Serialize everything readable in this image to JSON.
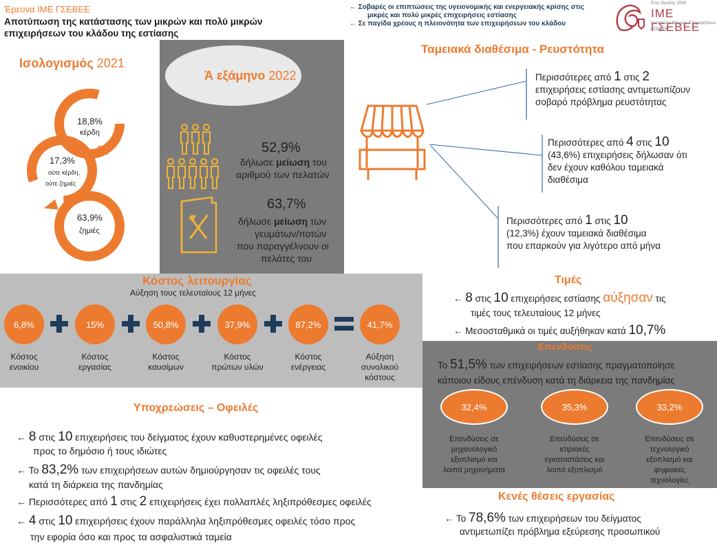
{
  "header": {
    "kicker": "Έρευνα ΙΜΕ ΓΣΕΒΕΕ",
    "title_line1": "Αποτύπωση της κατάστασης των μικρών και πολύ μικρών",
    "title_line2": "επιχειρήσεων του κλάδου της εστίασης",
    "bullet1_line1": "← Σοβαρές οι επιπτώσεις της υγειονομικής και ενεργειακής κρίσης στις",
    "bullet1_line2": "μικρές και πολύ μικρές επιχειρήσεις εστίασης",
    "bullet2": "← Σε παγίδα χρέους η πλειονότητα των επιχειρήσεων του κλάδου",
    "logo_small": "Ετος Ιδρυσης 2006",
    "logo_name": "ΙΜΕ ΓΣΕΒΕΕ",
    "logo_sub1": "Ινστιτούτο Μικρών Επιχειρήσεων",
    "logo_sub2": "ΓΣΕΒΕΕ"
  },
  "balance": {
    "title_a": "Ισολογισμός",
    "title_b": " 2021",
    "items": [
      {
        "value": "18,8%",
        "label": "κέρδη"
      },
      {
        "value": "17,3%",
        "label1": "ούτε κέρδη,",
        "label2": "ούτε ζημιές"
      },
      {
        "value": "63,9%",
        "label": "ζημιές"
      }
    ]
  },
  "semester": {
    "title_a": "Ά εξάμηνο",
    "title_b": " 2022",
    "stat1": {
      "value": "52,9%",
      "pre": "δήλωσε ",
      "strong": "μείωση",
      "post": " του",
      "line2": "αριθμού των πελατών"
    },
    "stat2": {
      "value": "63,7%",
      "pre": "δήλωσε ",
      "strong": "μείωση",
      "post": " των",
      "line2": "γευμάτων/ποτών",
      "line3": "που παραγγέλνουν οι",
      "line4": "πελάτες του"
    }
  },
  "cash": {
    "title": "Ταμειακά διαθέσιμα - Ρευστότητα",
    "b1": {
      "pre": "Περισσότερες από ",
      "n1": "1",
      "mid": " στις ",
      "n2": "2",
      "line2": "επιχειρήσεις εστίασης αντιμετωπίζουν",
      "line3": "σοβαρό πρόβλημα ρευστότητας"
    },
    "b2": {
      "pre": "Περισσότερες από ",
      "n1": "4",
      "mid": " στις ",
      "n2": "10",
      "line2": "(43,6%) επιχειρήσεις δήλωσαν ότι",
      "line3": "δεν έχουν καθόλου ταμειακά",
      "line4": "διαθέσιμα"
    },
    "b3": {
      "pre": "Περισσότερες από ",
      "n1": "1",
      "mid": " στις ",
      "n2": "10",
      "line2": "(12,3%) έχουν ταμειακά διαθέσιμα",
      "line3": "που επαρκούν για λιγότερο από μήνα"
    }
  },
  "costs": {
    "title": "Κόστος λειτουργίας",
    "subtitle": "Αύξηση τους τελευταίους 12 μήνες",
    "items": [
      {
        "value": "6,8%",
        "label1": "Κόστος",
        "label2": "ενοικίου"
      },
      {
        "value": "15%",
        "label1": "Κόστος",
        "label2": "εργασίας"
      },
      {
        "value": "50,8%",
        "label1": "Κόστος",
        "label2": "καυσίμων"
      },
      {
        "value": "37,9%",
        "label1": "Κόστος",
        "label2": "πρώτων υλών"
      },
      {
        "value": "87,2%",
        "label1": "Κόστος",
        "label2": "ενέργειας"
      },
      {
        "value": "41,7%",
        "label1": "Αύξηση",
        "label2": "συνολικού",
        "label3": "κόστους"
      }
    ]
  },
  "prices": {
    "title": "Τιμές",
    "l1_pre": "← ",
    "l1_n1": "8",
    "l1_mid": " στις ",
    "l1_n2": "10",
    "l1_post": " επιχειρήσεις εστίασης ",
    "l1_hl": "αύξησαν",
    "l1_end": " τις",
    "l1_line2": "τιμές τους τελευταίους 12 μήνες",
    "l2_pre": "← Μεσοσταθμικά οι τιμές αυξήθηκαν κατά ",
    "l2_val": "10,7%"
  },
  "investments": {
    "title": "Επενδύσεις",
    "intro_pre": "Το ",
    "intro_val": "51,5%",
    "intro_post": " των επιχειρήσεων εστίασης πραγματοποίησε",
    "intro_line2": "κάποιου είδους επένδυση κατά τη διάρκεια της πανδημίας",
    "items": [
      {
        "value": "32,4%",
        "l1": "Επενδύσεις σε",
        "l2": "μηχανολογικό",
        "l3": "εξοπλισμό και",
        "l4": "λοιπά μηχανήματα"
      },
      {
        "value": "35,3%",
        "l1": "Επενδύσεις σε",
        "l2": "κτιριακές",
        "l3": "εγκαταστάσεις και",
        "l4": "λοιπό εξοπλισμό"
      },
      {
        "value": "33,2%",
        "l1": "Επενδύσεις σε",
        "l2": "τεχνολογικό",
        "l3": "εξοπλισμό και",
        "l4": "ψηφιακές",
        "l5": "τεχνολογίες"
      }
    ]
  },
  "debts": {
    "title": "Υποχρεώσεις – Οφειλές",
    "b1": {
      "arrow": "← ",
      "n1": "8",
      "mid": " στις ",
      "n2": "10",
      "post": " επιχειρήσεις του δείγματος έχουν καθυστερημένες οφειλές",
      "line2": "προς το δημόσιο ή τους ιδιώτες"
    },
    "b2": {
      "arrow": "← Το ",
      "val": "83,2%",
      "post": " των επιχειρήσεων αυτών δημιούργησαν τις οφειλές τους",
      "line2": "κατά τη διάρκεια της πανδημίας"
    },
    "b3": {
      "arrow": "← Περισσότερες από ",
      "n1": "1",
      "mid": " στις ",
      "n2": "2",
      "post": " επιχειρήσεις έχει πολλαπλές ληξιπρόθεσμες οφειλές"
    },
    "b4": {
      "arrow": "← ",
      "n1": "4",
      "mid": " στις ",
      "n2": "10",
      "post": " επιχειρήσεις έχουν παράλληλα ληξιπρόθεσμες οφειλές τόσο προς",
      "line2": "την εφορία όσο και προς τα ασφαλιστικά ταμεία"
    }
  },
  "jobs": {
    "title": "Κενές θέσεις εργασίας",
    "pre": "← Το ",
    "val": "78,6%",
    "post": " των επιχειρήσεων του δείγματος",
    "line2": "αντιμετωπίζει πρόβλημα εξεύρεσης προσωπικού"
  },
  "colors": {
    "accent": "#ec7b30",
    "navy": "#1f3c5a",
    "panel_gray": "#7b7b7b",
    "panel_light": "#bdbdbd"
  }
}
